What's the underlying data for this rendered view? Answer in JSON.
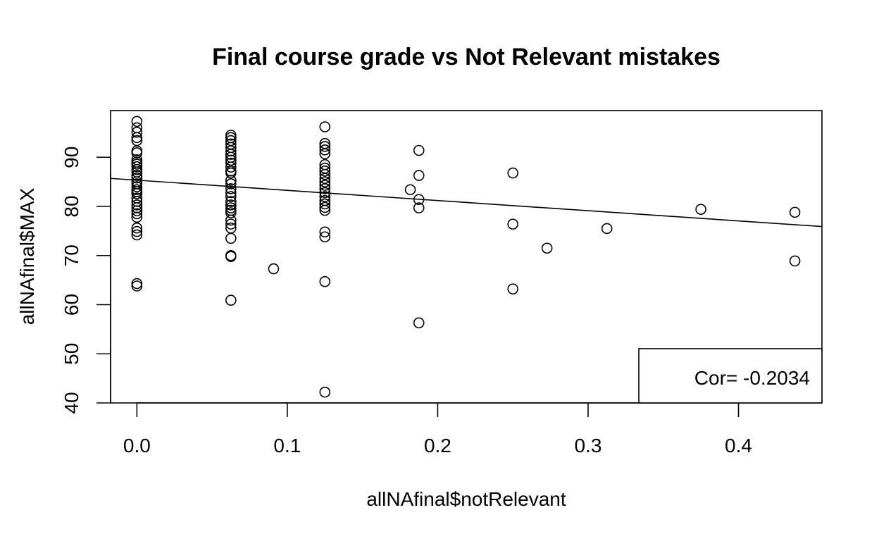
{
  "chart_data": {
    "type": "scatter",
    "title": "Final course grade vs Not Relevant mistakes",
    "xlabel": "allNAfinal$notRelevant",
    "ylabel": "allNAfinal$MAX",
    "xlim": [
      -0.0175,
      0.4555
    ],
    "ylim": [
      40,
      99.5
    ],
    "xticks": [
      0.0,
      0.1,
      0.2,
      0.3,
      0.4
    ],
    "xtick_labels": [
      "0.0",
      "0.1",
      "0.2",
      "0.3",
      "0.4"
    ],
    "yticks": [
      40,
      50,
      60,
      70,
      80,
      90
    ],
    "ytick_labels": [
      "40",
      "50",
      "60",
      "70",
      "80",
      "90"
    ],
    "grid": false,
    "legend": {
      "text": "Cor= -0.2034",
      "placement": "bottom-right"
    },
    "regression_line": {
      "x": [
        -0.0175,
        0.4555
      ],
      "y": [
        85.7,
        75.9
      ]
    },
    "points": [
      [
        0.0,
        97.3
      ],
      [
        0.0,
        96.0
      ],
      [
        0.0,
        95.1
      ],
      [
        0.0,
        94.0
      ],
      [
        0.0,
        93.4
      ],
      [
        0.0,
        91.3
      ],
      [
        0.0,
        90.9
      ],
      [
        0.0,
        89.5
      ],
      [
        0.0,
        89.0
      ],
      [
        0.0,
        88.6
      ],
      [
        0.0,
        88.1
      ],
      [
        0.0,
        87.5
      ],
      [
        0.0,
        87.0
      ],
      [
        0.0,
        86.3
      ],
      [
        0.0,
        85.8
      ],
      [
        0.0,
        85.0
      ],
      [
        0.0,
        84.6
      ],
      [
        0.0,
        84.0
      ],
      [
        0.0,
        83.4
      ],
      [
        0.0,
        83.0
      ],
      [
        0.0,
        82.6
      ],
      [
        0.0,
        81.7
      ],
      [
        0.0,
        81.0
      ],
      [
        0.0,
        80.3
      ],
      [
        0.0,
        79.7
      ],
      [
        0.0,
        79.1
      ],
      [
        0.0,
        78.5
      ],
      [
        0.0,
        77.8
      ],
      [
        0.0,
        75.6
      ],
      [
        0.0,
        74.9
      ],
      [
        0.0,
        74.2
      ],
      [
        0.0,
        64.3
      ],
      [
        0.0,
        63.8
      ],
      [
        0.0625,
        94.5
      ],
      [
        0.0625,
        94.0
      ],
      [
        0.0625,
        93.4
      ],
      [
        0.0625,
        92.7
      ],
      [
        0.0625,
        92.0
      ],
      [
        0.0625,
        91.3
      ],
      [
        0.0625,
        90.6
      ],
      [
        0.0625,
        90.0
      ],
      [
        0.0625,
        89.4
      ],
      [
        0.0625,
        88.8
      ],
      [
        0.0625,
        88.0
      ],
      [
        0.0625,
        87.2
      ],
      [
        0.0625,
        86.8
      ],
      [
        0.0625,
        85.3
      ],
      [
        0.0625,
        84.6
      ],
      [
        0.0625,
        83.6
      ],
      [
        0.0625,
        82.8
      ],
      [
        0.0625,
        82.0
      ],
      [
        0.0625,
        81.0
      ],
      [
        0.0625,
        80.3
      ],
      [
        0.0625,
        79.7
      ],
      [
        0.0625,
        79.2
      ],
      [
        0.0625,
        78.7
      ],
      [
        0.0625,
        77.2
      ],
      [
        0.0625,
        76.4
      ],
      [
        0.0625,
        75.6
      ],
      [
        0.0625,
        73.5
      ],
      [
        0.0625,
        70.0
      ],
      [
        0.0625,
        69.8
      ],
      [
        0.0625,
        60.9
      ],
      [
        0.0909,
        67.3
      ],
      [
        0.125,
        96.2
      ],
      [
        0.125,
        92.8
      ],
      [
        0.125,
        92.2
      ],
      [
        0.125,
        91.5
      ],
      [
        0.125,
        90.7
      ],
      [
        0.125,
        88.5
      ],
      [
        0.125,
        87.8
      ],
      [
        0.125,
        87.2
      ],
      [
        0.125,
        86.5
      ],
      [
        0.125,
        85.7
      ],
      [
        0.125,
        85.0
      ],
      [
        0.125,
        84.3
      ],
      [
        0.125,
        83.6
      ],
      [
        0.125,
        82.8
      ],
      [
        0.125,
        82.0
      ],
      [
        0.125,
        81.2
      ],
      [
        0.125,
        80.5
      ],
      [
        0.125,
        79.8
      ],
      [
        0.125,
        79.2
      ],
      [
        0.125,
        74.8
      ],
      [
        0.125,
        73.8
      ],
      [
        0.125,
        64.7
      ],
      [
        0.125,
        42.2
      ],
      [
        0.1818,
        83.4
      ],
      [
        0.1875,
        91.4
      ],
      [
        0.1875,
        86.3
      ],
      [
        0.1875,
        81.4
      ],
      [
        0.1875,
        79.7
      ],
      [
        0.1875,
        56.3
      ],
      [
        0.25,
        86.8
      ],
      [
        0.25,
        76.4
      ],
      [
        0.25,
        63.2
      ],
      [
        0.2727,
        71.5
      ],
      [
        0.3125,
        75.5
      ],
      [
        0.375,
        79.4
      ],
      [
        0.4375,
        78.8
      ],
      [
        0.4375,
        68.9
      ]
    ]
  }
}
